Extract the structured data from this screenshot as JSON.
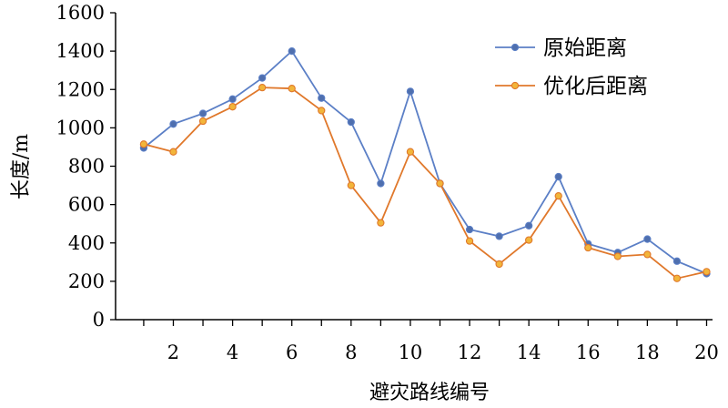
{
  "chart_data": {
    "type": "line",
    "title": "",
    "xlabel": "避灾路线编号",
    "ylabel": "长度/m",
    "x": [
      1,
      2,
      3,
      4,
      5,
      6,
      7,
      8,
      9,
      10,
      11,
      12,
      13,
      14,
      15,
      16,
      17,
      18,
      19,
      20
    ],
    "xticks": [
      2,
      4,
      6,
      8,
      10,
      12,
      14,
      16,
      18,
      20
    ],
    "xlim": [
      0.05,
      20.2
    ],
    "ylim": [
      0,
      1600
    ],
    "yticks": [
      0,
      200,
      400,
      600,
      800,
      1000,
      1200,
      1400,
      1600
    ],
    "grid": false,
    "legend_position": "top-right",
    "series": [
      {
        "name": "原始距离",
        "color": "#5b7fc6",
        "marker_fill": "#4f6fae",
        "values": [
          895,
          1020,
          1075,
          1150,
          1260,
          1400,
          1155,
          1030,
          710,
          1190,
          710,
          470,
          435,
          490,
          745,
          395,
          350,
          420,
          305,
          240
        ]
      },
      {
        "name": "优化后距离",
        "color": "#e0782b",
        "marker_fill": "#f2b53a",
        "values": [
          915,
          875,
          1035,
          1110,
          1210,
          1205,
          1090,
          700,
          505,
          875,
          710,
          410,
          290,
          415,
          645,
          375,
          330,
          340,
          215,
          250
        ]
      }
    ]
  }
}
